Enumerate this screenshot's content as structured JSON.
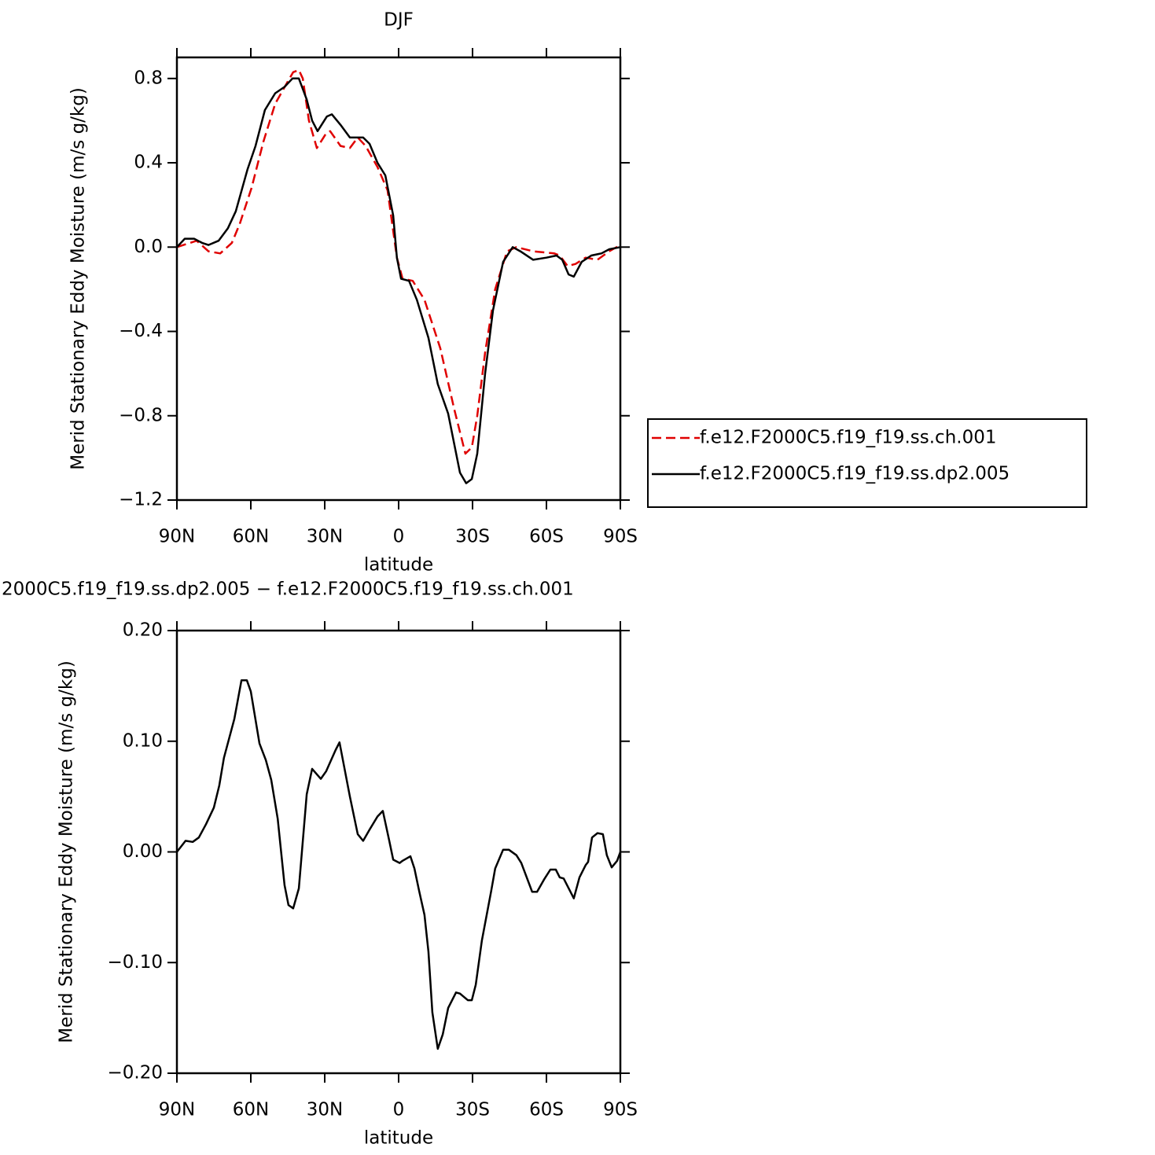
{
  "chart_data": [
    {
      "type": "line",
      "title": "DJF",
      "xlabel": "latitude",
      "ylabel": "Merid Stationary Eddy Moisture (m/s g/kg)",
      "xlim": [
        90,
        -90
      ],
      "xticks": [
        {
          "value": 90,
          "label": "90N"
        },
        {
          "value": 60,
          "label": "60N"
        },
        {
          "value": 30,
          "label": "30N"
        },
        0,
        {
          "value": -30,
          "label": "30S"
        },
        {
          "value": -60,
          "label": "60S"
        },
        {
          "value": -90,
          "label": "90S"
        }
      ],
      "ylim": [
        -1.2,
        0.9
      ],
      "yticks": [
        {
          "value": -1.2,
          "label": "−1.2"
        },
        {
          "value": -0.8,
          "label": "−0.8"
        },
        {
          "value": -0.4,
          "label": "−0.4"
        },
        {
          "value": 0,
          "label": "0.0"
        },
        0.4,
        0.8
      ],
      "legend": "right",
      "series": [
        {
          "name": "f.e12.F2000C5.f19_f19.ss.ch.001",
          "color": "#e00000",
          "line_style": "dashed",
          "x": [
            90,
            82,
            77.2,
            72.4,
            67.7,
            64.5,
            59.7,
            54.9,
            50.1,
            45.3,
            42.8,
            40.5,
            38.9,
            36.4,
            33.2,
            29.4,
            27.8,
            23.6,
            19.8,
            16.6,
            13.4,
            8.6,
            4.5,
            0.7,
            -1.6,
            -5.7,
            -10.5,
            -16.9,
            -22.6,
            -27.1,
            -29.7,
            -31.9,
            -35.1,
            -39.2,
            -44,
            -47.8,
            -54.6,
            -63.2,
            -65.4,
            -68.6,
            -71.8,
            -75.9,
            -80.7,
            -85.5,
            -90
          ],
          "values": [
            0.0,
            0.03,
            -0.02,
            -0.03,
            0.02,
            0.11,
            0.28,
            0.5,
            0.68,
            0.78,
            0.83,
            0.84,
            0.8,
            0.6,
            0.47,
            0.54,
            0.55,
            0.48,
            0.47,
            0.52,
            0.48,
            0.38,
            0.27,
            -0.05,
            -0.15,
            -0.16,
            -0.25,
            -0.48,
            -0.77,
            -0.98,
            -0.95,
            -0.8,
            -0.5,
            -0.2,
            -0.02,
            0.0,
            -0.02,
            -0.03,
            -0.04,
            -0.09,
            -0.08,
            -0.05,
            -0.06,
            -0.02,
            0.01
          ]
        },
        {
          "name": "f.e12.F2000C5.f19_f19.ss.dp2.005",
          "color": "#000000",
          "line_style": "solid",
          "x": [
            90,
            86.8,
            83,
            79.8,
            77.2,
            73.1,
            69.3,
            66.1,
            61.3,
            58.1,
            54.3,
            50.1,
            46.3,
            43.1,
            40.5,
            37.3,
            35.1,
            32.9,
            29.1,
            27.1,
            23.6,
            19.8,
            16.6,
            14.4,
            11.8,
            8.6,
            5.4,
            2.2,
            0.7,
            -1,
            -4.2,
            -7.4,
            -12.1,
            -15.9,
            -20.1,
            -24.9,
            -27.4,
            -29.7,
            -31.9,
            -35.1,
            -38.3,
            -42.4,
            -46.3,
            -49.4,
            -54.6,
            -60,
            -64.1,
            -66.4,
            -69,
            -71.1,
            -74.3,
            -78.2,
            -82.3,
            -85.5,
            -90
          ],
          "values": [
            0.0,
            0.04,
            0.04,
            0.02,
            0.01,
            0.03,
            0.09,
            0.17,
            0.37,
            0.48,
            0.65,
            0.73,
            0.76,
            0.8,
            0.8,
            0.7,
            0.6,
            0.55,
            0.62,
            0.63,
            0.58,
            0.52,
            0.52,
            0.52,
            0.49,
            0.4,
            0.34,
            0.15,
            -0.05,
            -0.15,
            -0.16,
            -0.25,
            -0.43,
            -0.65,
            -0.79,
            -1.07,
            -1.12,
            -1.1,
            -0.98,
            -0.6,
            -0.3,
            -0.07,
            0.0,
            -0.02,
            -0.06,
            -0.05,
            -0.04,
            -0.06,
            -0.13,
            -0.14,
            -0.07,
            -0.04,
            -0.03,
            -0.01,
            0.0
          ]
        }
      ]
    },
    {
      "type": "line",
      "title": "2000C5.f19_f19.ss.dp2.005 − f.e12.F2000C5.f19_f19.ss.ch.001",
      "xlabel": "latitude",
      "ylabel": "Merid Stationary Eddy Moisture (m/s g/kg)",
      "xlim": [
        90,
        -90
      ],
      "xticks": [
        {
          "value": 90,
          "label": "90N"
        },
        {
          "value": 60,
          "label": "60N"
        },
        {
          "value": 30,
          "label": "30N"
        },
        0,
        {
          "value": -30,
          "label": "30S"
        },
        {
          "value": -60,
          "label": "60S"
        },
        {
          "value": -90,
          "label": "90S"
        }
      ],
      "ylim": [
        -0.2,
        0.2
      ],
      "yticks": [
        {
          "value": -0.2,
          "label": "−0.20"
        },
        {
          "value": -0.1,
          "label": "−0.10"
        },
        {
          "value": 0,
          "label": "0.00"
        },
        {
          "value": 0.1,
          "label": "0.10"
        },
        {
          "value": 0.2,
          "label": "0.20"
        }
      ],
      "color": "#000000",
      "x": [
        90,
        86.5,
        83.6,
        81.1,
        78.2,
        75,
        72.8,
        70.9,
        66.7,
        63.8,
        61.6,
        60,
        56.5,
        53.9,
        51.7,
        49.1,
        46.3,
        44.7,
        42.8,
        40.5,
        37.3,
        35.1,
        31.6,
        29.4,
        25.6,
        24,
        19.8,
        16.6,
        14.4,
        11.8,
        8.6,
        6.4,
        3.8,
        2.2,
        -0.4,
        -1.6,
        -4.8,
        -6.4,
        -8.3,
        -10.5,
        -12.1,
        -13.7,
        -15.9,
        -17.9,
        -20.1,
        -23.3,
        -24.9,
        -28.1,
        -29.7,
        -31.3,
        -33.8,
        -37.6,
        -39.2,
        -42.4,
        -44.7,
        -47.8,
        -49.8,
        -54.2,
        -56.2,
        -59,
        -61.6,
        -63.8,
        -65.4,
        -67,
        -71.1,
        -73.4,
        -75.9,
        -76.9,
        -78.5,
        -80.7,
        -82.9,
        -84.5,
        -86.5,
        -88.7,
        -90
      ],
      "values": [
        0.0,
        0.01,
        0.009,
        0.013,
        0.025,
        0.04,
        0.06,
        0.085,
        0.12,
        0.155,
        0.155,
        0.145,
        0.098,
        0.083,
        0.065,
        0.03,
        -0.03,
        -0.048,
        -0.051,
        -0.033,
        0.052,
        0.075,
        0.066,
        0.073,
        0.092,
        0.099,
        0.05,
        0.016,
        0.01,
        0.02,
        0.032,
        0.037,
        0.01,
        -0.007,
        -0.01,
        -0.008,
        -0.004,
        -0.015,
        -0.035,
        -0.057,
        -0.09,
        -0.145,
        -0.178,
        -0.165,
        -0.141,
        -0.127,
        -0.128,
        -0.134,
        -0.134,
        -0.12,
        -0.08,
        -0.035,
        -0.015,
        0.002,
        0.002,
        -0.003,
        -0.01,
        -0.036,
        -0.036,
        -0.025,
        -0.016,
        -0.016,
        -0.023,
        -0.024,
        -0.042,
        -0.023,
        -0.012,
        -0.009,
        0.013,
        0.017,
        0.016,
        -0.003,
        -0.014,
        -0.008,
        0.0
      ]
    }
  ]
}
